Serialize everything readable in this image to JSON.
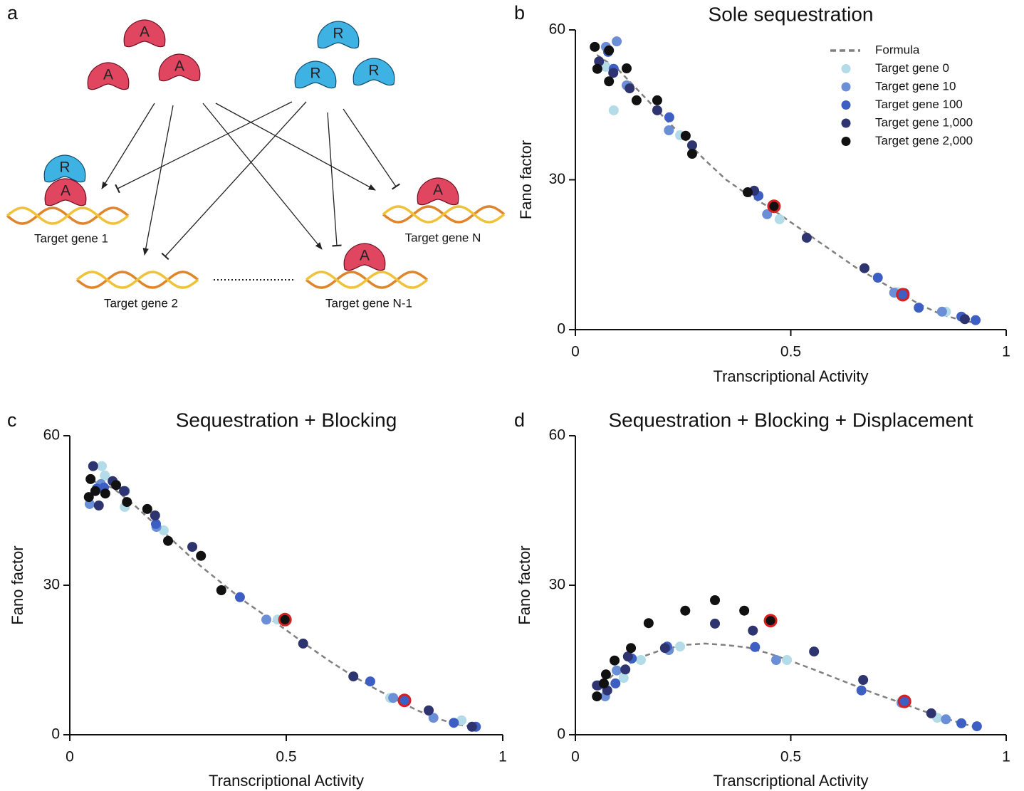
{
  "panel_labels": [
    "a",
    "b",
    "c",
    "d"
  ],
  "diagram": {
    "free_proteins": [
      "A",
      "A",
      "A",
      "R",
      "R",
      "R"
    ],
    "bound_proteins": [
      "R",
      "A",
      "A",
      "A"
    ],
    "genes": [
      "Target gene 1",
      "Target gene 2",
      "Target gene N-1",
      "Target gene N"
    ]
  },
  "chart_data": [
    {
      "type": "scatter",
      "title": "Sole sequestration",
      "x_label": "Transcriptional Activity",
      "y_label": "Fano factor",
      "xlim": [
        0,
        1
      ],
      "ylim": [
        0,
        60
      ],
      "xticks": [
        0,
        0.5,
        1
      ],
      "yticks": [
        0,
        30,
        60
      ],
      "legend": "upper right",
      "series": [
        {
          "name": "Formula",
          "style": "dashed-line",
          "color": "#808080",
          "x": [
            0.05,
            0.1,
            0.15,
            0.2,
            0.25,
            0.3,
            0.35,
            0.4,
            0.45,
            0.5,
            0.55,
            0.6,
            0.65,
            0.7,
            0.75,
            0.8,
            0.85,
            0.9,
            0.92
          ],
          "values": [
            55,
            52,
            47.5,
            43,
            38.5,
            34,
            30,
            27,
            24.5,
            21.5,
            18.5,
            15.5,
            12.5,
            10,
            7.5,
            5,
            3,
            1.8,
            1.5
          ]
        },
        {
          "name": "Target gene 0",
          "color": "#b3dbe8",
          "x": [
            0.089,
            0.071,
            0.243,
            0.474,
            0.86,
            0.747
          ],
          "values": [
            43.9,
            52.6,
            38.9,
            22.1,
            3.6,
            7.5
          ]
        },
        {
          "name": "Target gene 10",
          "color": "#6b8fd6",
          "x": [
            0.096,
            0.071,
            0.119,
            0.217,
            0.445,
            0.851,
            0.74
          ],
          "values": [
            57.7,
            56.6,
            48.9,
            39.9,
            23.1,
            3.6,
            7.4
          ]
        },
        {
          "name": "Target gene 100",
          "color": "#3d5ec2",
          "x": [
            0.076,
            0.089,
            0.218,
            0.425,
            0.764,
            0.797,
            0.896,
            0.929,
            0.702
          ],
          "values": [
            55.6,
            52.2,
            42.5,
            26.8,
            7.3,
            4.4,
            2.6,
            1.9,
            10.4
          ]
        },
        {
          "name": "Target gene 1,000",
          "color": "#2e3470",
          "x": [
            0.055,
            0.088,
            0.126,
            0.19,
            0.271,
            0.415,
            0.537,
            0.671,
            0.904
          ],
          "values": [
            53.7,
            51.4,
            48.3,
            43.9,
            36.9,
            27.8,
            18.4,
            12.3,
            2.1
          ]
        },
        {
          "name": "Target gene 2,000",
          "color": "#111111",
          "x": [
            0.045,
            0.078,
            0.051,
            0.078,
            0.119,
            0.142,
            0.19,
            0.256,
            0.271,
            0.4
          ],
          "values": [
            56.6,
            55.9,
            52.2,
            49.7,
            52.3,
            45.9,
            45.9,
            38.8,
            35.2,
            27.5
          ]
        }
      ],
      "highlights": {
        "edge": "#d62020",
        "x": [
          0.461,
          0.76
        ],
        "values": [
          24.7,
          7
        ],
        "colors": [
          "#111111",
          "#3d5ec2"
        ]
      }
    },
    {
      "type": "scatter",
      "title": "Sequestration + Blocking",
      "x_label": "Transcriptional Activity",
      "y_label": "Fano factor",
      "xlim": [
        0,
        1
      ],
      "ylim": [
        0,
        60
      ],
      "xticks": [
        0,
        0.5,
        1
      ],
      "yticks": [
        0,
        30,
        60
      ],
      "series": [
        {
          "style": "dashed-line",
          "color": "#808080",
          "x": [
            0.05,
            0.1,
            0.15,
            0.2,
            0.25,
            0.3,
            0.35,
            0.4,
            0.45,
            0.5,
            0.55,
            0.6,
            0.65,
            0.7,
            0.75,
            0.8,
            0.85,
            0.9,
            0.94
          ],
          "values": [
            51,
            49.5,
            46,
            42,
            38,
            34,
            30.5,
            27,
            24,
            21,
            17.8,
            14.8,
            12,
            9.5,
            7.2,
            5,
            3.2,
            2,
            1.5
          ]
        },
        {
          "color": "#b3dbe8",
          "x": [
            0.074,
            0.081,
            0.127,
            0.217,
            0.48,
            0.905,
            0.74
          ],
          "values": [
            53.9,
            52,
            45.7,
            41,
            23.1,
            2.9,
            7.4
          ]
        },
        {
          "color": "#6b8fd6",
          "x": [
            0.046,
            0.072,
            0.2,
            0.454,
            0.747,
            0.84
          ],
          "values": [
            46.3,
            50.3,
            41.7,
            23.1,
            7.4,
            3.4
          ]
        },
        {
          "color": "#3d5ec2",
          "x": [
            0.0625,
            0.079,
            0.127,
            0.199,
            0.393,
            0.694,
            0.77,
            0.887,
            0.938
          ],
          "values": [
            49.4,
            49.6,
            48.9,
            42.3,
            27.6,
            10.7,
            6.7,
            2.4,
            1.6
          ]
        },
        {
          "color": "#2e3470",
          "x": [
            0.054,
            0.067,
            0.099,
            0.125,
            0.197,
            0.283,
            0.539,
            0.655,
            0.829,
            0.929
          ],
          "values": [
            53.9,
            46,
            50.9,
            48.9,
            44,
            37.7,
            18.3,
            11.7,
            4.9,
            1.6
          ]
        },
        {
          "color": "#111111",
          "x": [
            0.048,
            0.044,
            0.059,
            0.082,
            0.107,
            0.132,
            0.179,
            0.227,
            0.303,
            0.35
          ],
          "values": [
            51.3,
            47.7,
            48.9,
            48.4,
            50.1,
            46.7,
            45.3,
            38.9,
            35.9,
            29
          ]
        }
      ],
      "highlights": {
        "edge": "#d62020",
        "x": [
          0.497,
          0.773
        ],
        "values": [
          23.1,
          6.9
        ],
        "colors": [
          "#111111",
          "#3d5ec2"
        ]
      }
    },
    {
      "type": "scatter",
      "title": "Sequestration + Blocking + Displacement",
      "x_label": "Transcriptional Activity",
      "y_label": "Fano factor",
      "xlim": [
        0,
        1
      ],
      "ylim": [
        0,
        60
      ],
      "xticks": [
        0,
        0.5,
        1
      ],
      "yticks": [
        0,
        30,
        60
      ],
      "series": [
        {
          "style": "dashed-line",
          "color": "#808080",
          "x": [
            0.05,
            0.1,
            0.15,
            0.2,
            0.25,
            0.3,
            0.35,
            0.4,
            0.45,
            0.5,
            0.55,
            0.6,
            0.65,
            0.7,
            0.75,
            0.8,
            0.85,
            0.9,
            0.93
          ],
          "values": [
            9,
            13,
            15.5,
            17,
            18,
            18.3,
            18,
            17.5,
            16.3,
            14.8,
            13.2,
            11.5,
            9.8,
            8.1,
            6.6,
            5,
            3.5,
            2.2,
            1.5
          ]
        },
        {
          "color": "#b3dbe8",
          "x": [
            0.069,
            0.112,
            0.152,
            0.243,
            0.491,
            0.84,
            0.757
          ],
          "values": [
            9.9,
            11.4,
            15,
            17.7,
            15,
            3.4,
            6.7
          ]
        },
        {
          "color": "#6b8fd6",
          "x": [
            0.069,
            0.096,
            0.217,
            0.466,
            0.86,
            0.757
          ],
          "values": [
            7.7,
            12.9,
            17,
            15,
            3.1,
            6.4
          ]
        },
        {
          "color": "#3d5ec2",
          "x": [
            0.053,
            0.093,
            0.131,
            0.213,
            0.417,
            0.664,
            0.896,
            0.932
          ],
          "values": [
            9.9,
            10.3,
            15.3,
            17.7,
            17.6,
            8.9,
            2.3,
            1.7
          ]
        },
        {
          "color": "#2e3470",
          "x": [
            0.05,
            0.074,
            0.116,
            0.122,
            0.208,
            0.324,
            0.412,
            0.554,
            0.668,
            0.826
          ],
          "values": [
            9.9,
            8.9,
            13.1,
            15.7,
            17.4,
            22.3,
            20.9,
            16.7,
            11,
            4.3
          ]
        },
        {
          "color": "#111111",
          "x": [
            0.05,
            0.066,
            0.071,
            0.091,
            0.129,
            0.17,
            0.255,
            0.324,
            0.392
          ],
          "values": [
            7.7,
            10.3,
            12.1,
            14.9,
            17.4,
            22.4,
            24.9,
            27,
            24.9
          ]
        }
      ],
      "highlights": {
        "edge": "#d62020",
        "x": [
          0.453,
          0.764
        ],
        "values": [
          22.9,
          6.7
        ],
        "colors": [
          "#111111",
          "#3d5ec2"
        ]
      }
    }
  ]
}
